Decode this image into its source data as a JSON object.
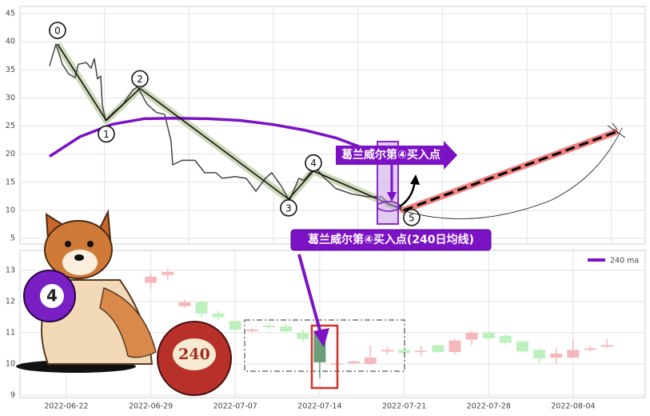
{
  "chart_data": [
    {
      "type": "line",
      "xlim": [
        -0.74,
        36.27
      ],
      "ylim": [
        4,
        46.3
      ],
      "yticks": [
        5,
        10,
        15,
        20,
        25,
        30,
        35,
        40,
        45
      ],
      "grid": true,
      "series": [
        {
          "color": "#444444",
          "x": [
            1.01,
            1.39,
            1.77,
            2.14,
            2.52,
            2.71,
            3.19,
            3.47,
            3.66,
            3.85,
            4.04,
            4.13,
            4.32,
            4.79,
            5.36,
            5.93,
            6.21,
            6.78,
            7.35,
            7.82,
            8.2,
            8.3,
            8.86,
            9.62,
            10.19,
            10.85,
            11.23,
            11.99,
            12.65,
            13.22,
            13.79,
            14.16,
            14.73,
            15.21,
            15.77,
            16.06,
            16.72,
            17.2,
            17.95,
            18.9,
            19.84,
            20.7,
            21.07,
            21.74,
            22.21
          ],
          "values": [
            35.7,
            39.6,
            36.0,
            34.3,
            33.6,
            36.0,
            36.3,
            35.3,
            37.0,
            33.4,
            33.9,
            28.9,
            26.0,
            27.4,
            28.9,
            31.4,
            32.0,
            28.9,
            27.4,
            27.1,
            22.4,
            18.1,
            18.9,
            18.9,
            16.7,
            16.7,
            15.7,
            16.0,
            15.7,
            13.4,
            15.7,
            16.7,
            14.3,
            11.7,
            15.7,
            15.3,
            17.7,
            16.0,
            13.9,
            12.9,
            12.4,
            12.4,
            11.0,
            10.6,
            10.0
          ]
        },
        {
          "name": "240 ma",
          "color": "#7b12c4",
          "x": [
            1.01,
            2.81,
            4.7,
            6.59,
            8.49,
            10.38,
            12.27,
            14.17,
            16.06,
            17.95,
            19.37,
            20.32
          ],
          "values": [
            19.6,
            23.1,
            25.3,
            26.3,
            26.4,
            26.3,
            26.0,
            25.3,
            24.3,
            22.9,
            21.3,
            19.1
          ]
        }
      ],
      "wave_points": {
        "labels": [
          "0",
          "1",
          "2",
          "3",
          "4",
          "5"
        ],
        "x": [
          1.48,
          4.37,
          6.36,
          15.16,
          16.63,
          21.97
        ],
        "values": [
          39.6,
          26.0,
          31.7,
          12.0,
          17.0,
          10.0
        ]
      },
      "trend_line": {
        "color": "#f08080",
        "x": [
          21.97,
          34.5
        ],
        "values": [
          10.0,
          23.9
        ]
      },
      "annotations": [
        "葛兰威尔第④买入点",
        "葛兰威尔第④买入点(240日均线)"
      ]
    },
    {
      "type": "candlestick",
      "ylim": [
        8.92,
        13.64
      ],
      "yticks": [
        9,
        10,
        11,
        12,
        13
      ],
      "grid": true,
      "up_color": "#f5b8ba",
      "down_color": "#bdf0bd",
      "highlight_index": 17,
      "highlight_color": "#6d9e7a",
      "categories": [
        null,
        null,
        "2022-06-22",
        null,
        null,
        null,
        null,
        "2022-06-29",
        null,
        null,
        null,
        null,
        "2022-07-07",
        null,
        null,
        null,
        null,
        "2022-07-14",
        null,
        null,
        null,
        null,
        "2022-07-21",
        null,
        null,
        null,
        null,
        "2022-07-28",
        null,
        null,
        null,
        null,
        "2022-08-04",
        null,
        null,
        null,
        null
      ],
      "open": [
        null,
        null,
        null,
        null,
        null,
        null,
        null,
        12.6,
        12.85,
        11.85,
        11.98,
        11.62,
        11.37,
        11.05,
        11.23,
        11.2,
        11.0,
        11.0,
        9.98,
        10.02,
        10.0,
        10.4,
        10.45,
        10.38,
        10.6,
        10.38,
        10.78,
        11.0,
        10.9,
        10.72,
        10.45,
        10.2,
        10.2,
        10.45,
        10.55,
        null,
        null
      ],
      "high": [
        null,
        null,
        null,
        null,
        null,
        null,
        null,
        12.9,
        13.05,
        12.05,
        12.0,
        11.7,
        11.4,
        11.15,
        11.3,
        11.3,
        11.1,
        11.1,
        10.1,
        10.1,
        10.6,
        10.55,
        10.5,
        10.6,
        10.65,
        10.8,
        11.05,
        11.05,
        10.95,
        10.75,
        10.5,
        10.5,
        10.8,
        10.58,
        10.8,
        null,
        null
      ],
      "low": [
        null,
        null,
        null,
        null,
        null,
        null,
        null,
        12.4,
        12.7,
        11.8,
        11.5,
        11.4,
        11.0,
        11.0,
        11.1,
        11.0,
        10.7,
        9.55,
        9.9,
        10.0,
        9.95,
        10.3,
        10.3,
        10.25,
        10.35,
        10.3,
        10.6,
        10.8,
        10.6,
        10.35,
        9.98,
        10.0,
        10.2,
        10.4,
        10.5,
        null,
        null
      ],
      "close": [
        null,
        null,
        null,
        null,
        null,
        null,
        null,
        12.8,
        12.95,
        11.98,
        11.62,
        11.5,
        11.1,
        11.1,
        11.18,
        11.05,
        10.8,
        10.05,
        10.02,
        10.08,
        10.2,
        10.45,
        10.35,
        10.42,
        10.38,
        10.75,
        11.0,
        10.82,
        10.68,
        10.4,
        10.18,
        10.33,
        10.45,
        10.5,
        10.6,
        null,
        null
      ]
    }
  ],
  "decorations": {
    "ball_labels": [
      "4",
      "240"
    ]
  }
}
